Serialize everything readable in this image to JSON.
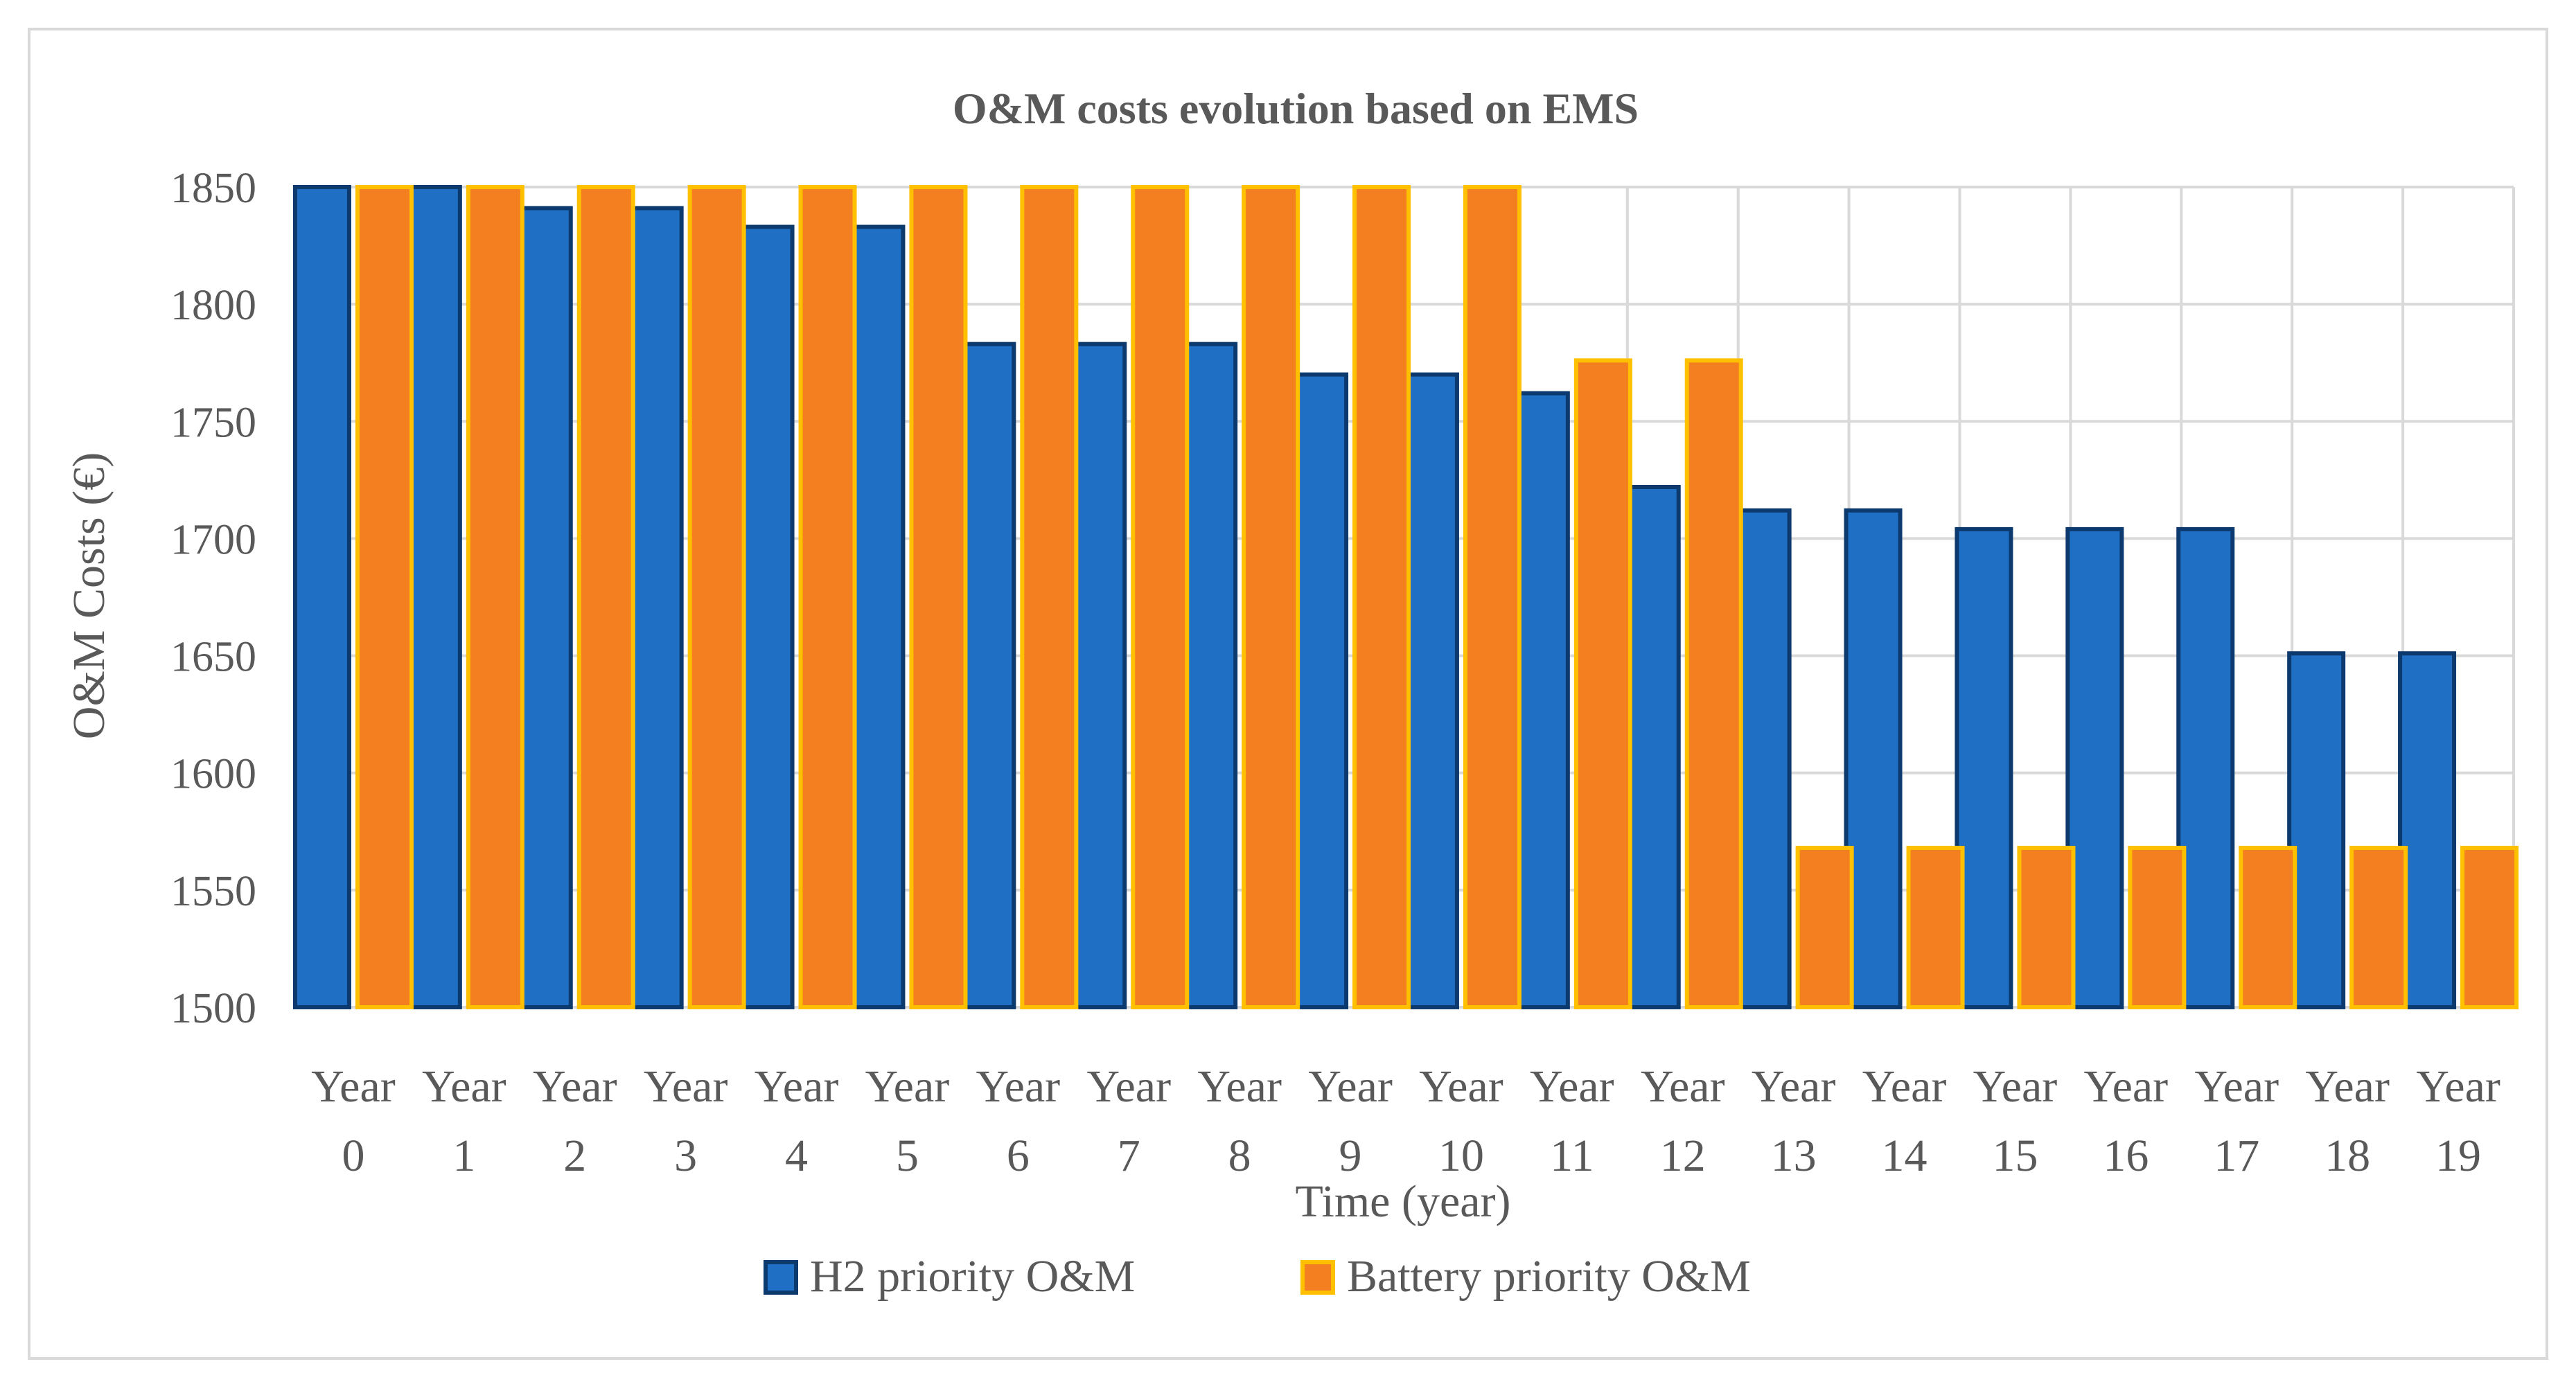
{
  "chart_data": {
    "type": "bar",
    "title": "O&M costs evolution based on EMS",
    "xlabel": "Time (year)",
    "ylabel": "O&M Costs (€)",
    "ylim": [
      1500,
      1850
    ],
    "yticks": [
      1500,
      1550,
      1600,
      1650,
      1700,
      1750,
      1800,
      1850
    ],
    "grid": true,
    "legend_position": "bottom",
    "categories": [
      "Year 0",
      "Year 1",
      "Year 2",
      "Year 3",
      "Year 4",
      "Year 5",
      "Year 6",
      "Year 7",
      "Year 8",
      "Year 9",
      "Year 10",
      "Year 11",
      "Year 12",
      "Year 13",
      "Year 14",
      "Year 15",
      "Year 16",
      "Year 17",
      "Year 18",
      "Year 19"
    ],
    "series": [
      {
        "name": "H2 priority O&M",
        "color": "#1F6FC5",
        "border": "#0D3A6E",
        "values": [
          1850,
          1850,
          1841,
          1841,
          1833,
          1833,
          1783,
          1783,
          1783,
          1770,
          1770,
          1762,
          1722,
          1712,
          1712,
          1704,
          1704,
          1704,
          1651,
          1651
        ]
      },
      {
        "name": "Battery priority O&M",
        "color": "#F47F20",
        "border": "#FFC000",
        "values": [
          1850,
          1850,
          1850,
          1850,
          1850,
          1850,
          1850,
          1850,
          1850,
          1850,
          1850,
          1776,
          1776,
          1568,
          1568,
          1568,
          1568,
          1568,
          1568,
          1568
        ]
      }
    ]
  }
}
